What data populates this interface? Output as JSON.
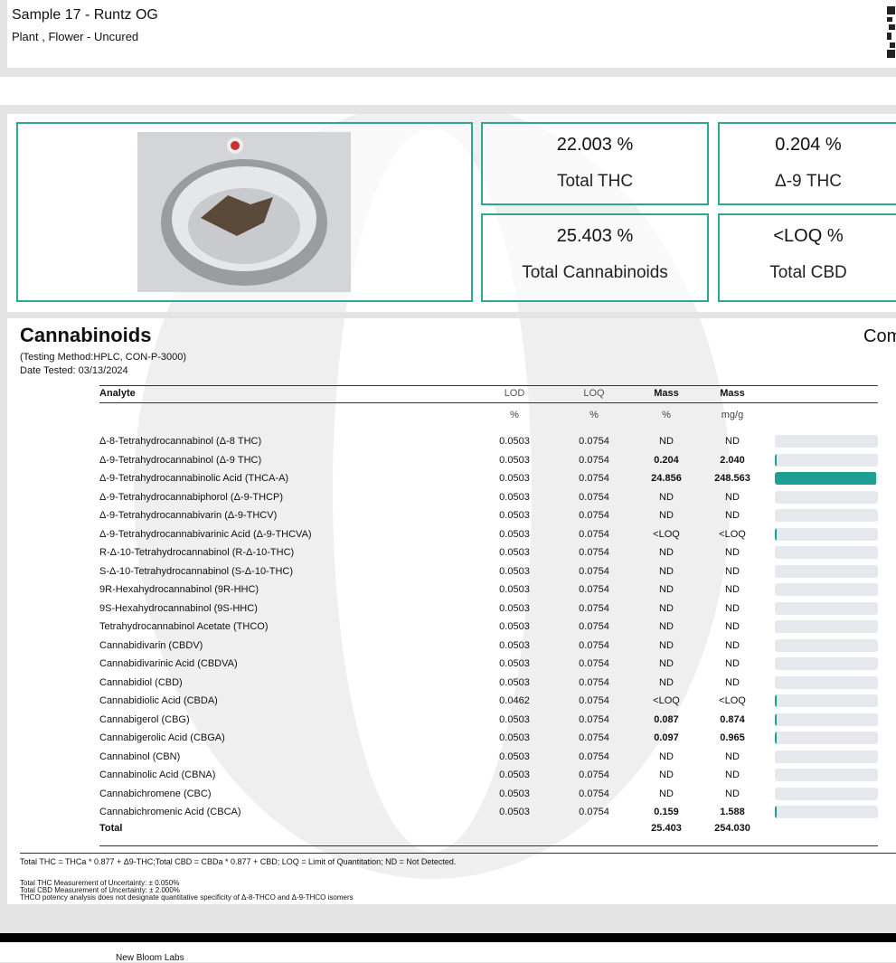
{
  "header": {
    "title": "Sample 17 - Runtz OG",
    "subtitle": "Plant , Flower - Uncured"
  },
  "summary": [
    {
      "value": "22.003 %",
      "label": "Total THC"
    },
    {
      "value": "0.204 %",
      "label": "Δ-9 THC"
    },
    {
      "value": "25.403 %",
      "label": "Total Cannabinoids"
    },
    {
      "value": "<LOQ %",
      "label": "Total CBD"
    }
  ],
  "cannabinoids": {
    "title": "Cannabinoids",
    "side_title": "Com",
    "method": "(Testing Method:HPLC, CON-P-3000)",
    "date": "Date Tested: 03/13/2024",
    "columns": [
      "Analyte",
      "LOD",
      "LOQ",
      "Mass",
      "Mass"
    ],
    "units": [
      "%",
      "%",
      "%",
      "mg/g"
    ],
    "rows": [
      [
        "Δ-8-Tetrahydrocannabinol (Δ-8 THC)",
        "0.0503",
        "0.0754",
        "ND",
        "ND"
      ],
      [
        "Δ-9-Tetrahydrocannabinol (Δ-9 THC)",
        "0.0503",
        "0.0754",
        "0.204",
        "2.040"
      ],
      [
        "Δ-9-Tetrahydrocannabinolic Acid (THCA-A)",
        "0.0503",
        "0.0754",
        "24.856",
        "248.563"
      ],
      [
        "Δ-9-Tetrahydrocannabiphorol (Δ-9-THCP)",
        "0.0503",
        "0.0754",
        "ND",
        "ND"
      ],
      [
        "Δ-9-Tetrahydrocannabivarin (Δ-9-THCV)",
        "0.0503",
        "0.0754",
        "ND",
        "ND"
      ],
      [
        "Δ-9-Tetrahydrocannabivarinic Acid (Δ-9-THCVA)",
        "0.0503",
        "0.0754",
        "<LOQ",
        "<LOQ"
      ],
      [
        "R-Δ-10-Tetrahydrocannabinol (R-Δ-10-THC)",
        "0.0503",
        "0.0754",
        "ND",
        "ND"
      ],
      [
        "S-Δ-10-Tetrahydrocannabinol (S-Δ-10-THC)",
        "0.0503",
        "0.0754",
        "ND",
        "ND"
      ],
      [
        "9R-Hexahydrocannabinol (9R-HHC)",
        "0.0503",
        "0.0754",
        "ND",
        "ND"
      ],
      [
        "9S-Hexahydrocannabinol (9S-HHC)",
        "0.0503",
        "0.0754",
        "ND",
        "ND"
      ],
      [
        "Tetrahydrocannabinol Acetate (THCO)",
        "0.0503",
        "0.0754",
        "ND",
        "ND"
      ],
      [
        "Cannabidivarin (CBDV)",
        "0.0503",
        "0.0754",
        "ND",
        "ND"
      ],
      [
        "Cannabidivarinic Acid (CBDVA)",
        "0.0503",
        "0.0754",
        "ND",
        "ND"
      ],
      [
        "Cannabidiol (CBD)",
        "0.0503",
        "0.0754",
        "ND",
        "ND"
      ],
      [
        "Cannabidiolic Acid (CBDA)",
        "0.0462",
        "0.0754",
        "<LOQ",
        "<LOQ"
      ],
      [
        "Cannabigerol (CBG)",
        "0.0503",
        "0.0754",
        "0.087",
        "0.874"
      ],
      [
        "Cannabigerolic Acid (CBGA)",
        "0.0503",
        "0.0754",
        "0.097",
        "0.965"
      ],
      [
        "Cannabinol (CBN)",
        "0.0503",
        "0.0754",
        "ND",
        "ND"
      ],
      [
        "Cannabinolic Acid (CBNA)",
        "0.0503",
        "0.0754",
        "ND",
        "ND"
      ],
      [
        "Cannabichromene (CBC)",
        "0.0503",
        "0.0754",
        "ND",
        "ND"
      ],
      [
        "Cannabichromenic Acid (CBCA)",
        "0.0503",
        "0.0754",
        "0.159",
        "1.588"
      ]
    ],
    "total": [
      "Total",
      "25.403",
      "254.030"
    ]
  },
  "footnote": "Total THC = THCa * 0.877 + Δ9-THC;Total CBD = CBDa * 0.877 + CBD; LOQ = Limit of Quantitation; ND = Not Detected.",
  "notes": [
    "Total THC Measurement of Uncertainty: ± 0.050%",
    "Total CBD Measurement of Uncertainty: ± 2.000%",
    "THCO potency analysis does not designate quantitative specificity of Δ-8-THCO and Δ-9-THCO isomers"
  ],
  "footer": "New Bloom Labs"
}
